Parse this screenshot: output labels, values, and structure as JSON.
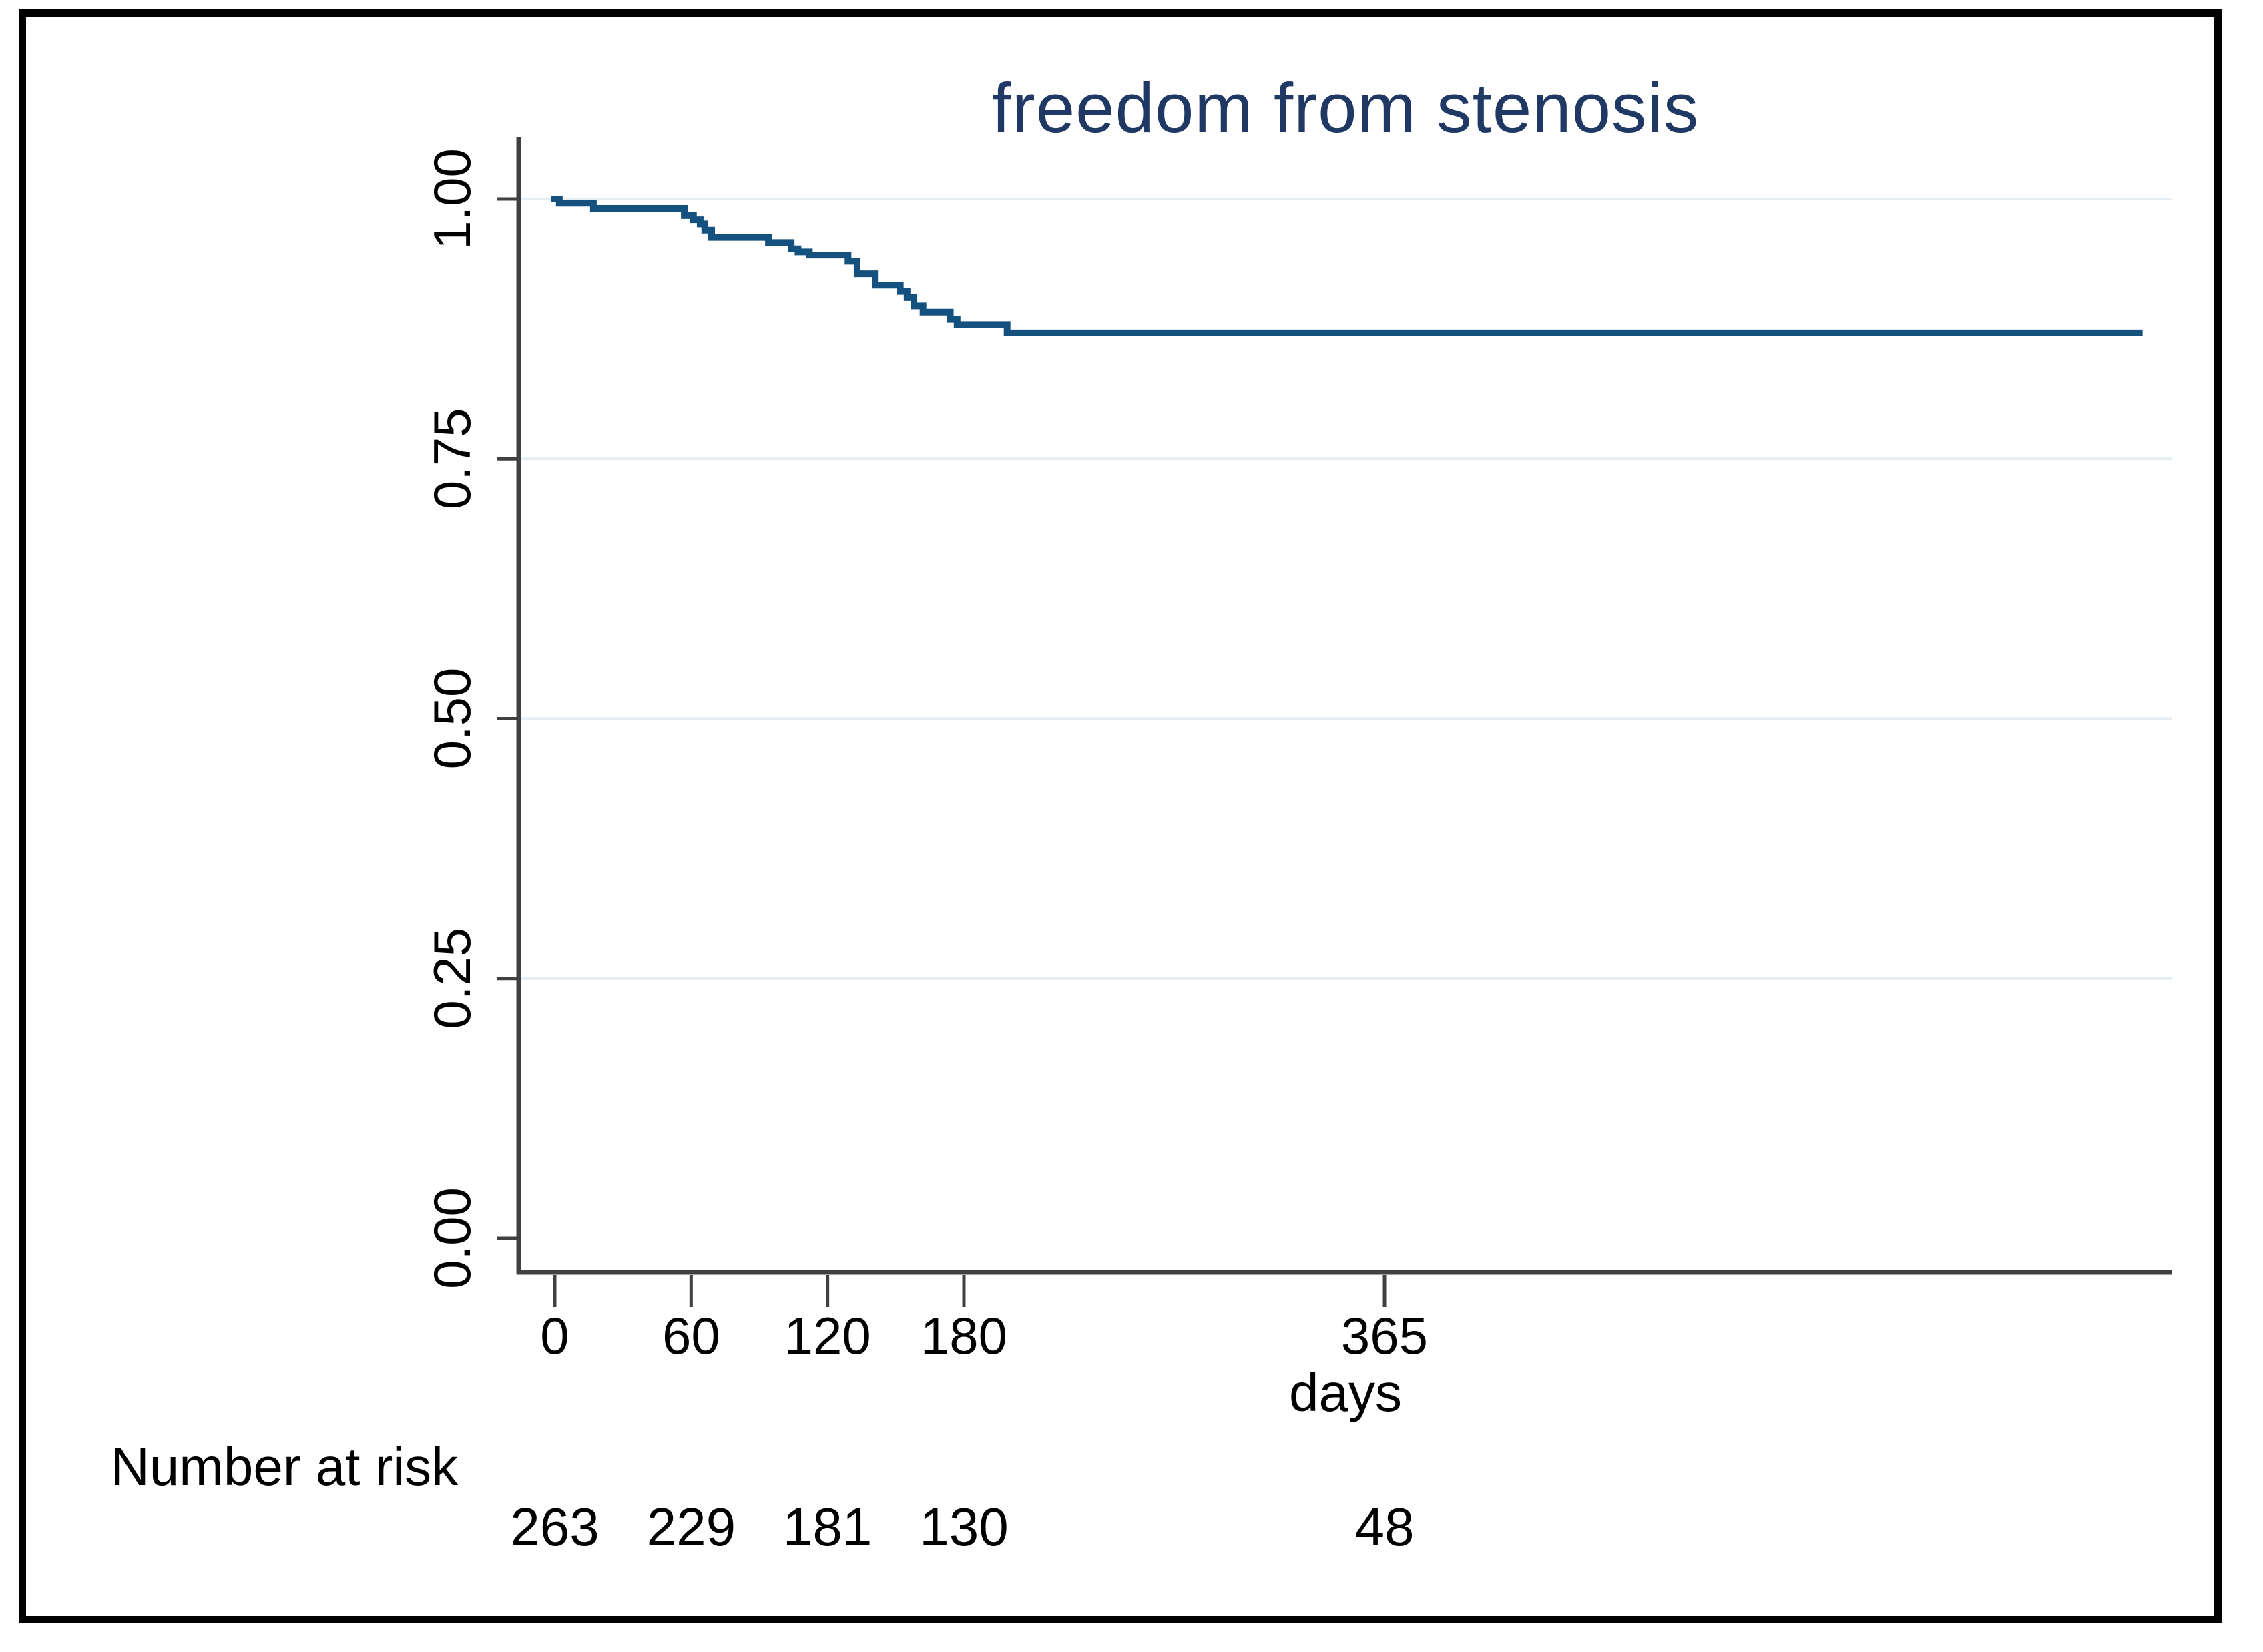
{
  "figure": {
    "title": "freedom from stenosis",
    "title_color": "#1f3864",
    "background": "#ffffff",
    "frame_color": "#000000"
  },
  "chart_data": {
    "type": "line",
    "subtype": "kaplan-meier-step",
    "title": "freedom from stenosis",
    "xlabel": "days",
    "ylabel": "",
    "xlim": [
      0,
      712
    ],
    "ylim": [
      0.0,
      1.0
    ],
    "grid": "horizontal",
    "legend": "none",
    "x_ticks": [
      {
        "value": 0,
        "label": "0"
      },
      {
        "value": 60,
        "label": "60"
      },
      {
        "value": 120,
        "label": "120"
      },
      {
        "value": 180,
        "label": "180"
      },
      {
        "value": 365,
        "label": "365"
      }
    ],
    "y_ticks": [
      {
        "value": 1.0,
        "label": "1.00"
      },
      {
        "value": 0.75,
        "label": "0.75"
      },
      {
        "value": 0.5,
        "label": "0.50"
      },
      {
        "value": 0.25,
        "label": "0.25"
      },
      {
        "value": 0.0,
        "label": "0.00"
      }
    ],
    "gridline_values": [
      1.0,
      0.75,
      0.5,
      0.25
    ],
    "series": [
      {
        "name": "freedom from stenosis",
        "steps_day_survival": [
          [
            0,
            1.0
          ],
          [
            2,
            0.996
          ],
          [
            17,
            0.991
          ],
          [
            57,
            0.984
          ],
          [
            61,
            0.98
          ],
          [
            64,
            0.976
          ],
          [
            66,
            0.97
          ],
          [
            69,
            0.963
          ],
          [
            94,
            0.958
          ],
          [
            104,
            0.952
          ],
          [
            107,
            0.949
          ],
          [
            112,
            0.946
          ],
          [
            129,
            0.94
          ],
          [
            133,
            0.928
          ],
          [
            141,
            0.917
          ],
          [
            152,
            0.911
          ],
          [
            155,
            0.905
          ],
          [
            158,
            0.897
          ],
          [
            162,
            0.891
          ],
          [
            174,
            0.884
          ],
          [
            177,
            0.879
          ],
          [
            199,
            0.871
          ]
        ],
        "end_day": 697,
        "final_survival": 0.871
      }
    ],
    "line_color": "#15517e",
    "grid_color": "#e4eef3",
    "axis_color": "#404040",
    "text_color": "#000000"
  },
  "risk_table": {
    "label": "Number at risk",
    "days": [
      0,
      60,
      120,
      180,
      365
    ],
    "values": [
      "263",
      "229",
      "181",
      "130",
      "48"
    ]
  }
}
